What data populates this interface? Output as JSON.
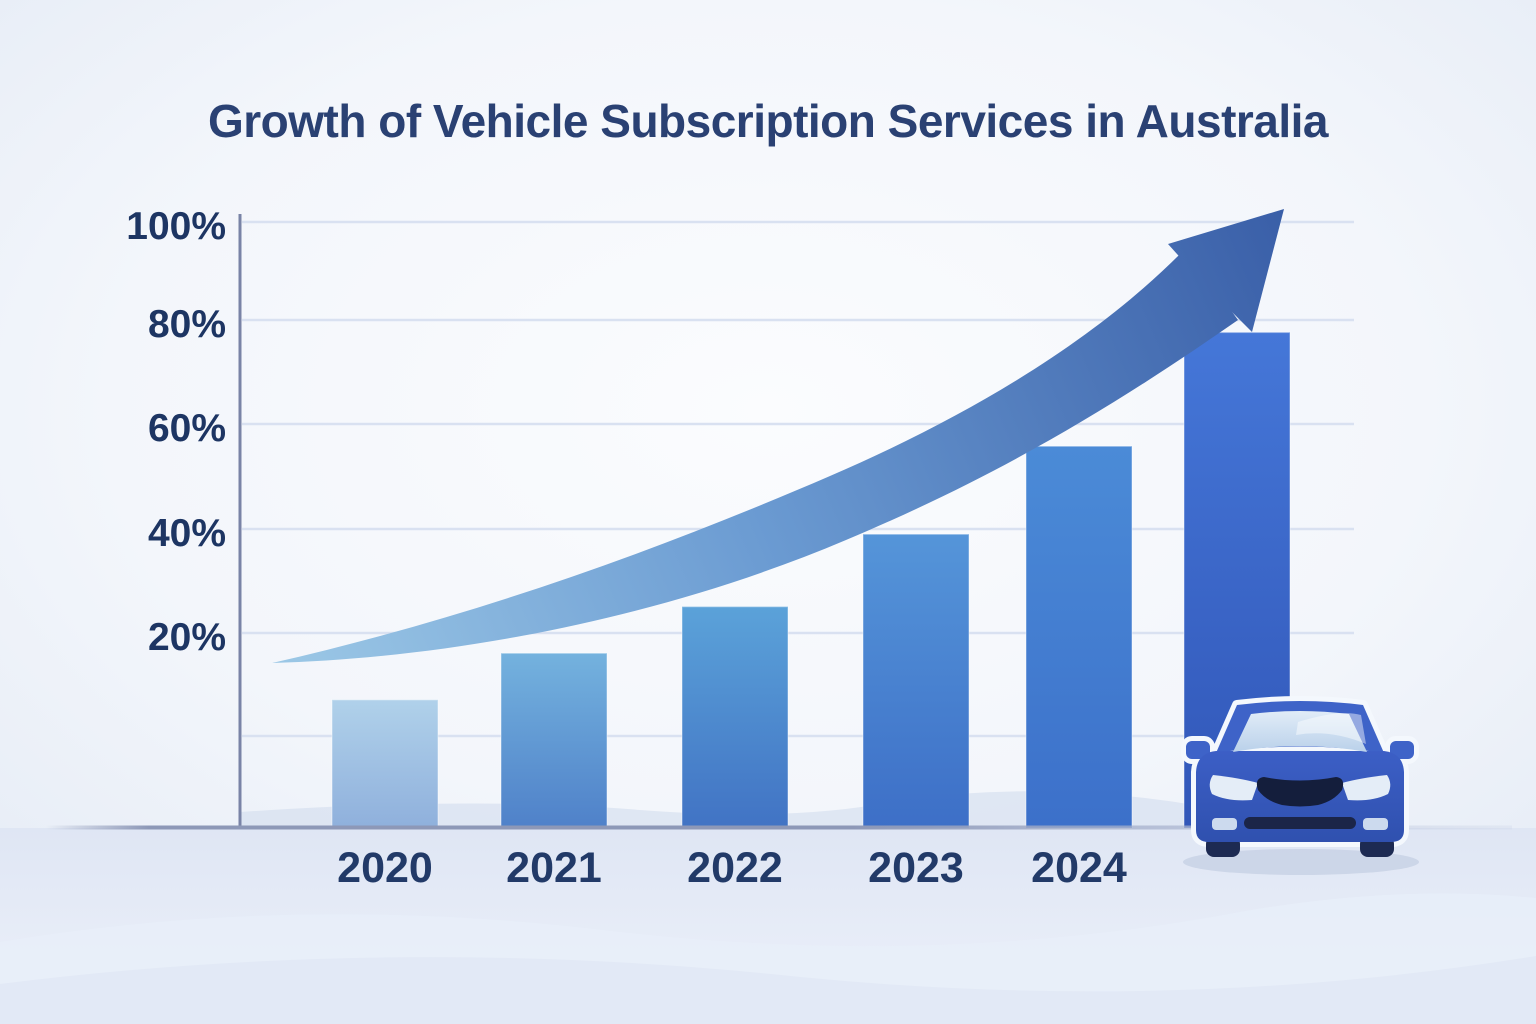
{
  "chart_data": {
    "type": "bar",
    "title": "Growth of Vehicle Subscription Services in Australia",
    "categories": [
      "2020",
      "2021",
      "2022",
      "2023",
      "2024",
      ""
    ],
    "values": [
      7,
      16,
      25,
      39,
      56,
      78
    ],
    "unit": "%",
    "yticks": [
      "100%",
      "80%",
      "60%",
      "40%",
      "20%"
    ],
    "ylim": [
      0,
      100
    ],
    "grid": true,
    "legend": false,
    "annotations": [
      "curved upward growth arrow sweeping from lower left to upper right",
      "front-view blue car illustration at lower right, overlapping tallest bar",
      "sixth (tallest) bar has no year label"
    ]
  },
  "colors": {
    "title_text": "#2a4173",
    "axis_text": "#1d3563",
    "category_text": "#223a68",
    "axis_line": "#7983a6",
    "baseline": "#8d98b7",
    "gridline": "#d9e1f1",
    "arrow_tail": "#9cc8e6",
    "arrow_mid": "#6b9bd2",
    "arrow_head": "#3a5fa8",
    "car_body": "#3c5fc6",
    "car_body_dark": "#2f50ae",
    "car_roof": "#3e63c8",
    "car_glass": "#e2edf8",
    "car_glass_dark": "#b7cfe9",
    "car_dark": "#141e3c",
    "car_bumper": "#1b2548",
    "car_wheel": "#1d2a52",
    "car_halo": "#f4f8fd",
    "car_headlight": "#e4edf7",
    "car_foglight": "#ccdaee",
    "car_shadow": "#c7d1e5",
    "ground_top": "#dfe6f4",
    "ground_bottom": "#edf1fa",
    "ground_wave1": "#e8eef9",
    "ground_wave2": "#dde5f3",
    "hill": "#ccd8ec",
    "bar_top": [
      "#b0d1ea",
      "#74b2de",
      "#5ba2d9",
      "#5595d9",
      "#4b8bd7",
      "#4577d8"
    ],
    "bar_bottom": [
      "#8fb0dc",
      "#4f81c9",
      "#4173c4",
      "#3d6fc7",
      "#3c70ca",
      "#3156b8"
    ]
  }
}
